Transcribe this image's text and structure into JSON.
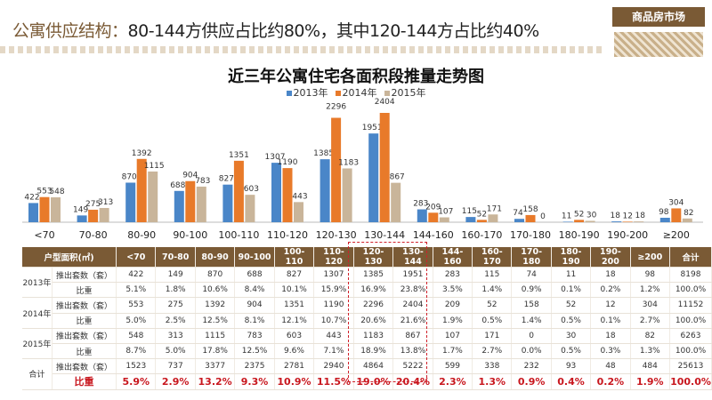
{
  "header": {
    "lead": "公寓供应结构：",
    "text": "80-144方供应占比约80%，其中120-144方占比约40%",
    "badge": "商品房市场"
  },
  "chart_data": {
    "type": "bar",
    "title": "近三年公寓住宅各面积段推量走势图",
    "categories": [
      "<70",
      "70-80",
      "80-90",
      "90-100",
      "100-110",
      "110-120",
      "120-130",
      "130-144",
      "144-160",
      "160-170",
      "170-180",
      "180-190",
      "190-200",
      "≥200"
    ],
    "series": [
      {
        "name": "2013年",
        "color": "#4a86c8",
        "values": [
          422,
          149,
          870,
          688,
          827,
          1307,
          1385,
          1951,
          283,
          115,
          74,
          11,
          18,
          98
        ]
      },
      {
        "name": "2014年",
        "color": "#e87a2a",
        "values": [
          553,
          275,
          1392,
          904,
          1351,
          1190,
          2296,
          2404,
          209,
          52,
          158,
          52,
          12,
          304
        ]
      },
      {
        "name": "2015年",
        "color": "#c9b59a",
        "values": [
          548,
          313,
          1115,
          783,
          603,
          443,
          1183,
          867,
          107,
          171,
          0,
          30,
          18,
          82
        ]
      }
    ],
    "legend": "top",
    "grid": false
  },
  "table": {
    "header": [
      "户型面积(㎡)",
      "<70",
      "70-80",
      "80-90",
      "90-100",
      "100-110",
      "110-120",
      "120-130",
      "130-144",
      "144-160",
      "160-170",
      "170-180",
      "180-190",
      "190-200",
      "≥200",
      "合计"
    ],
    "groups": [
      {
        "label": "2013年",
        "rows": [
          [
            "推出套数（套）",
            "422",
            "149",
            "870",
            "688",
            "827",
            "1307",
            "1385",
            "1951",
            "283",
            "115",
            "74",
            "11",
            "18",
            "98",
            "8198"
          ],
          [
            "比重",
            "5.1%",
            "1.8%",
            "10.6%",
            "8.4%",
            "10.1%",
            "15.9%",
            "16.9%",
            "23.8%",
            "3.5%",
            "1.4%",
            "0.9%",
            "0.1%",
            "0.2%",
            "1.2%",
            "100.0%"
          ]
        ]
      },
      {
        "label": "2014年",
        "rows": [
          [
            "推出套数（套）",
            "553",
            "275",
            "1392",
            "904",
            "1351",
            "1190",
            "2296",
            "2404",
            "209",
            "52",
            "158",
            "52",
            "12",
            "304",
            "11152"
          ],
          [
            "比重",
            "5.0%",
            "2.5%",
            "12.5%",
            "8.1%",
            "12.1%",
            "10.7%",
            "20.6%",
            "21.6%",
            "1.9%",
            "0.5%",
            "1.4%",
            "0.5%",
            "0.1%",
            "2.7%",
            "100.0%"
          ]
        ]
      },
      {
        "label": "2015年",
        "rows": [
          [
            "推出套数（套）",
            "548",
            "313",
            "1115",
            "783",
            "603",
            "443",
            "1183",
            "867",
            "107",
            "171",
            "0",
            "30",
            "18",
            "82",
            "6263"
          ],
          [
            "比重",
            "8.7%",
            "5.0%",
            "17.8%",
            "12.5%",
            "9.6%",
            "7.1%",
            "18.9%",
            "13.8%",
            "1.7%",
            "2.7%",
            "0.0%",
            "0.5%",
            "0.3%",
            "1.3%",
            "100.0%"
          ]
        ]
      },
      {
        "label": "合计",
        "rows": [
          [
            "推出套数（套）",
            "1523",
            "737",
            "3377",
            "2375",
            "2781",
            "2940",
            "4864",
            "5222",
            "599",
            "338",
            "232",
            "93",
            "48",
            "484",
            "25613"
          ],
          [
            "比重",
            "5.9%",
            "2.9%",
            "13.2%",
            "9.3%",
            "10.9%",
            "11.5%",
            "19.0%",
            "20.4%",
            "2.3%",
            "1.3%",
            "0.9%",
            "0.4%",
            "0.2%",
            "1.9%",
            "100.0%"
          ]
        ]
      }
    ]
  }
}
